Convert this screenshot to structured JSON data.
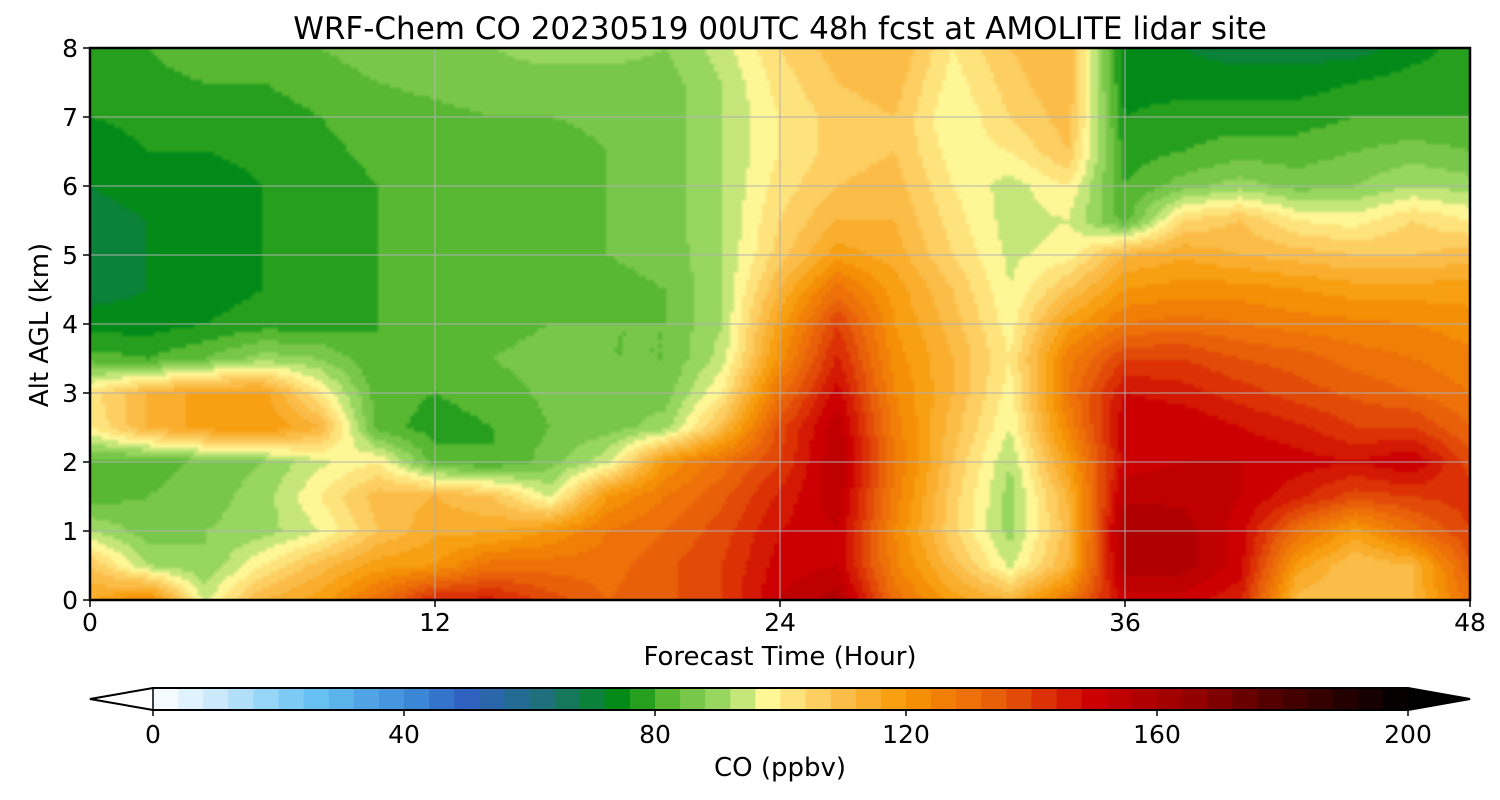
{
  "chart_data": {
    "type": "heatmap",
    "title": "WRF-Chem CO  20230519 00UTC 48h fcst at AMOLITE lidar site",
    "xlabel": "Forecast Time (Hour)",
    "ylabel": "Alt AGL (km)",
    "xlim": [
      0,
      48
    ],
    "ylim": [
      0,
      8
    ],
    "x_ticks": [
      0,
      12,
      24,
      36,
      48
    ],
    "y_ticks": [
      0,
      1,
      2,
      3,
      4,
      5,
      6,
      7,
      8
    ],
    "grid": true,
    "x": [
      0,
      2,
      4,
      6,
      8,
      10,
      12,
      14,
      16,
      18,
      20,
      22,
      24,
      26,
      28,
      30,
      32,
      34,
      36,
      38,
      40,
      42,
      44,
      46,
      48
    ],
    "y": [
      0,
      0.5,
      1,
      1.5,
      2,
      2.5,
      3,
      3.5,
      4,
      4.5,
      5,
      5.5,
      6,
      6.5,
      7,
      7.5,
      8
    ],
    "values": [
      [
        115,
        125,
        95,
        112,
        118,
        130,
        145,
        145,
        138,
        132,
        135,
        140,
        152,
        158,
        130,
        118,
        112,
        128,
        150,
        150,
        145,
        110,
        108,
        112,
        130
      ],
      [
        108,
        92,
        88,
        100,
        110,
        118,
        120,
        130,
        130,
        130,
        135,
        140,
        150,
        152,
        125,
        110,
        95,
        112,
        158,
        158,
        150,
        118,
        108,
        112,
        135
      ],
      [
        92,
        86,
        88,
        90,
        96,
        108,
        115,
        115,
        120,
        128,
        132,
        138,
        148,
        152,
        124,
        105,
        90,
        110,
        160,
        158,
        150,
        130,
        118,
        130,
        140
      ],
      [
        82,
        84,
        86,
        90,
        100,
        110,
        112,
        108,
        95,
        120,
        128,
        135,
        145,
        155,
        126,
        106,
        90,
        112,
        155,
        155,
        152,
        145,
        138,
        140,
        142
      ],
      [
        82,
        82,
        85,
        88,
        95,
        100,
        82,
        80,
        86,
        95,
        120,
        130,
        140,
        156,
        128,
        108,
        92,
        118,
        150,
        152,
        152,
        150,
        148,
        152,
        138
      ],
      [
        100,
        112,
        118,
        120,
        112,
        82,
        78,
        80,
        84,
        86,
        90,
        110,
        138,
        155,
        126,
        110,
        96,
        124,
        152,
        152,
        148,
        145,
        140,
        140,
        132
      ],
      [
        102,
        112,
        118,
        118,
        100,
        82,
        80,
        82,
        85,
        86,
        86,
        100,
        130,
        150,
        124,
        112,
        98,
        128,
        148,
        146,
        142,
        138,
        135,
        132,
        128
      ],
      [
        82,
        80,
        84,
        90,
        88,
        80,
        80,
        84,
        86,
        84,
        84,
        94,
        122,
        145,
        122,
        112,
        100,
        126,
        140,
        140,
        136,
        134,
        130,
        128,
        125
      ],
      [
        74,
        74,
        76,
        78,
        78,
        80,
        81,
        82,
        84,
        84,
        84,
        92,
        118,
        140,
        120,
        110,
        98,
        118,
        128,
        130,
        128,
        126,
        125,
        124,
        122
      ],
      [
        70,
        72,
        74,
        76,
        78,
        80,
        81,
        81,
        83,
        83,
        84,
        92,
        112,
        130,
        118,
        108,
        96,
        108,
        120,
        122,
        122,
        120,
        118,
        118,
        118
      ],
      [
        70,
        72,
        74,
        76,
        78,
        80,
        82,
        81,
        82,
        84,
        85,
        92,
        106,
        118,
        114,
        104,
        95,
        98,
        112,
        115,
        112,
        110,
        108,
        108,
        110
      ],
      [
        70,
        72,
        74,
        76,
        78,
        80,
        82,
        82,
        82,
        84,
        86,
        92,
        104,
        112,
        112,
        102,
        94,
        96,
        82,
        104,
        108,
        100,
        98,
        104,
        100
      ],
      [
        72,
        74,
        74,
        76,
        78,
        80,
        82,
        82,
        82,
        84,
        86,
        92,
        102,
        108,
        110,
        100,
        94,
        100,
        80,
        86,
        90,
        86,
        88,
        92,
        90
      ],
      [
        74,
        76,
        76,
        77,
        79,
        81,
        82,
        83,
        82,
        84,
        86,
        92,
        100,
        106,
        108,
        98,
        100,
        108,
        78,
        80,
        82,
        82,
        84,
        86,
        84
      ],
      [
        76,
        77,
        78,
        78,
        80,
        82,
        83,
        84,
        84,
        85,
        86,
        92,
        100,
        106,
        108,
        96,
        104,
        110,
        76,
        78,
        78,
        78,
        80,
        80,
        80
      ],
      [
        78,
        79,
        80,
        80,
        82,
        84,
        85,
        86,
        86,
        86,
        86,
        92,
        102,
        108,
        110,
        98,
        106,
        112,
        74,
        74,
        74,
        74,
        76,
        78,
        78
      ],
      [
        80,
        80,
        82,
        82,
        84,
        86,
        86,
        88,
        90,
        90,
        88,
        94,
        104,
        110,
        112,
        100,
        108,
        112,
        74,
        72,
        70,
        70,
        70,
        74,
        78
      ]
    ],
    "colorbar": {
      "label": "CO  (ppbv)",
      "vmin": 0,
      "vmax": 200,
      "ticks": [
        0,
        40,
        80,
        120,
        160,
        200
      ],
      "extend": "both",
      "colors": [
        {
          "v": 0,
          "c": "#ffffff"
        },
        {
          "v": 10,
          "c": "#cbe9fb"
        },
        {
          "v": 25,
          "c": "#6ac3f3"
        },
        {
          "v": 40,
          "c": "#3f8fdc"
        },
        {
          "v": 50,
          "c": "#2f62c0"
        },
        {
          "v": 62,
          "c": "#1f6f7c"
        },
        {
          "v": 75,
          "c": "#008c10"
        },
        {
          "v": 82,
          "c": "#58b832"
        },
        {
          "v": 92,
          "c": "#a8dd6e"
        },
        {
          "v": 98,
          "c": "#fff796"
        },
        {
          "v": 108,
          "c": "#fcc455"
        },
        {
          "v": 120,
          "c": "#f79705"
        },
        {
          "v": 135,
          "c": "#e85c0a"
        },
        {
          "v": 150,
          "c": "#cc0000"
        },
        {
          "v": 165,
          "c": "#980000"
        },
        {
          "v": 180,
          "c": "#4a0000"
        },
        {
          "v": 200,
          "c": "#000000"
        }
      ]
    }
  }
}
